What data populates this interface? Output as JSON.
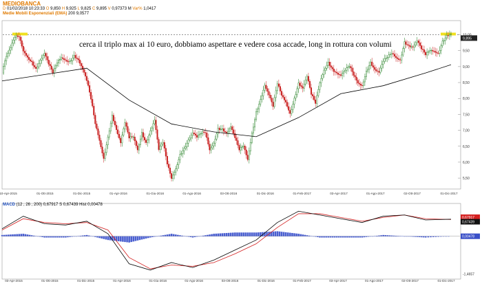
{
  "header": {
    "symbol": "MEDIOBANCA",
    "quote": {
      "date": "01/02/2018",
      "time": "10:23:33",
      "open": "9,850",
      "high": "9,925",
      "low": "9,825",
      "close": "9,895",
      "volume": "0,97373 M",
      "var_pct": "1,0417"
    },
    "ma_label": "Medie Mobili Esponenziali (EMA)",
    "ma_period": "200",
    "ma_value": "9,0577"
  },
  "annotation": "cerca il triplo max ai 10 euro, dobbiamo aspettare e vedere cosa accade, long in rottura con volumi",
  "macd_header": {
    "label": "MACD",
    "params": "(12 , 26 , 200)",
    "macd": "0,67917",
    "signal_label": "S",
    "signal": "0,67439",
    "hist_label": "Hist",
    "hist": "0,00478"
  },
  "colors": {
    "up_candle": "#1a7a1a",
    "down_candle": "#c81e1e",
    "ema": "#000000",
    "macd_line": "#000000",
    "signal_line": "#d42020",
    "histogram": "#4a5fd0",
    "resistance": "#555555",
    "resistance_marker": "#f0e020"
  },
  "chart_data": [
    {
      "type": "candlestick",
      "symbol": "MEDIOBANCA",
      "ylim": [
        5.2,
        10.4
      ],
      "yticks": [
        "10,00",
        "9,50",
        "9,00",
        "8,50",
        "8,00",
        "7,50",
        "7,00",
        "6,50",
        "6,00",
        "5,50"
      ],
      "ytick_values": [
        10.0,
        9.5,
        9.0,
        8.5,
        8.0,
        7.5,
        7.0,
        6.5,
        6.0,
        5.5
      ],
      "last_price_label": "9,895",
      "last_price": 9.895,
      "resistance_level": 10.0,
      "xticks": [
        "10-Apr-2015",
        "01-Ott-2015",
        "01-Dic-2015",
        "01-Apr-2016",
        "01-Giu-2016",
        "01-Ago-2016",
        "03-Ott-2016",
        "01-Dic-2016",
        "01-Feb-2017",
        "03-Apr-2017",
        "01-Ago-2017",
        "02-Ott-2017",
        "01-Dic-2017"
      ],
      "series": [
        {
          "kind": "price",
          "x": [
            0,
            6,
            12,
            18,
            24,
            30,
            36,
            42,
            48,
            54,
            60,
            66,
            72,
            78,
            84,
            90,
            96,
            102,
            108,
            114,
            120,
            126,
            132,
            138,
            144,
            150,
            156,
            162,
            168,
            174,
            180,
            186,
            192,
            198,
            204,
            210,
            216,
            222,
            228,
            234,
            240,
            246,
            252,
            258,
            264,
            270,
            276,
            282,
            288,
            294,
            300,
            306,
            312,
            318,
            324,
            330,
            336,
            342,
            348,
            354,
            360,
            366,
            372,
            378,
            384,
            390,
            396,
            402,
            408,
            414,
            420,
            426,
            432,
            438,
            444,
            450,
            456,
            462,
            468,
            474,
            480,
            486,
            492,
            498,
            504,
            510,
            516,
            522,
            528,
            534,
            540,
            546,
            552,
            558,
            564,
            570,
            576,
            582,
            588,
            594,
            600,
            606,
            612,
            618,
            624,
            630,
            636
          ],
          "y": [
            8.8,
            9.2,
            9.5,
            9.9,
            10.0,
            9.6,
            9.4,
            9.2,
            8.9,
            9.1,
            9.3,
            9.0,
            8.8,
            9.2,
            9.4,
            9.3,
            9.2,
            9.3,
            9.1,
            8.8,
            8.5,
            8.0,
            7.3,
            6.8,
            6.2,
            6.8,
            7.4,
            6.9,
            6.5,
            7.2,
            6.8,
            6.9,
            6.5,
            7.0,
            6.6,
            6.9,
            7.2,
            6.3,
            6.6,
            6.0,
            5.6,
            5.9,
            6.3,
            6.4,
            6.6,
            6.8,
            6.7,
            6.9,
            7.0,
            6.5,
            6.7,
            7.1,
            7.0,
            6.8,
            7.0,
            6.7,
            6.4,
            6.6,
            6.2,
            7.0,
            7.6,
            7.9,
            8.3,
            8.0,
            7.7,
            8.5,
            8.2,
            8.0,
            7.6,
            8.0,
            8.4,
            8.2,
            8.6,
            8.1,
            7.9,
            8.6,
            9.0,
            9.2,
            8.9,
            8.7,
            8.6,
            8.8,
            9.0,
            8.8,
            8.6,
            8.5,
            8.9,
            9.1,
            8.8,
            8.7,
            9.1,
            9.3,
            9.5,
            9.4,
            9.3,
            9.8,
            9.6,
            9.5,
            9.7,
            9.5,
            9.4,
            9.6,
            9.6,
            9.5,
            9.8,
            9.9,
            9.9
          ]
        },
        {
          "kind": "ema200",
          "x": [
            0,
            60,
            120,
            180,
            240,
            300,
            360,
            420,
            480,
            540,
            600,
            636
          ],
          "y": [
            8.55,
            8.75,
            8.95,
            7.95,
            7.2,
            6.95,
            6.8,
            7.4,
            8.15,
            8.4,
            8.8,
            9.06
          ]
        }
      ]
    },
    {
      "type": "macd",
      "ylim": [
        -1.6,
        1.2
      ],
      "yticks": [
        "0,67917",
        "0,67439",
        "0,00478",
        "-1,4657"
      ],
      "xticks": [
        "03-Apr-2015",
        "01-Ott-2015",
        "01-Dic-2015",
        "01-Apr-2016",
        "01-Giu-2016",
        "01-Ago-2016",
        "03-Ott-2016",
        "01-Dic-2016",
        "01-Feb-2017",
        "03-Apr-2017",
        "01-Ago-2017",
        "02-Ott-2017",
        "01-Dic-2017"
      ],
      "series": [
        {
          "name": "MACD",
          "x": [
            0,
            30,
            60,
            90,
            120,
            150,
            180,
            210,
            240,
            270,
            300,
            330,
            360,
            390,
            420,
            450,
            480,
            510,
            540,
            570,
            600,
            636
          ],
          "y": [
            0.3,
            0.8,
            0.5,
            0.45,
            0.6,
            0.1,
            -1.1,
            -1.35,
            -1.05,
            -1.25,
            -0.95,
            -0.55,
            -0.15,
            0.55,
            1.0,
            0.85,
            0.7,
            0.55,
            0.8,
            0.85,
            0.65,
            0.68
          ]
        },
        {
          "name": "S",
          "x": [
            0,
            30,
            60,
            90,
            120,
            150,
            180,
            210,
            240,
            270,
            300,
            330,
            360,
            390,
            420,
            450,
            480,
            510,
            540,
            570,
            600,
            636
          ],
          "y": [
            0.25,
            0.7,
            0.55,
            0.5,
            0.55,
            0.25,
            -0.85,
            -1.3,
            -1.15,
            -1.2,
            -1.05,
            -0.7,
            -0.3,
            0.35,
            0.9,
            0.9,
            0.75,
            0.6,
            0.75,
            0.85,
            0.7,
            0.67
          ]
        },
        {
          "name": "Hist",
          "x": [
            0,
            30,
            60,
            90,
            120,
            150,
            180,
            210,
            240,
            270,
            300,
            330,
            360,
            390,
            420,
            450,
            480,
            510,
            540,
            570,
            600,
            636
          ],
          "y": [
            0.05,
            0.1,
            -0.05,
            -0.05,
            0.05,
            -0.15,
            -0.25,
            -0.05,
            0.1,
            -0.05,
            0.1,
            0.15,
            0.15,
            0.2,
            0.1,
            -0.05,
            -0.05,
            -0.05,
            0.05,
            0.0,
            -0.05,
            0.005
          ]
        }
      ]
    }
  ]
}
